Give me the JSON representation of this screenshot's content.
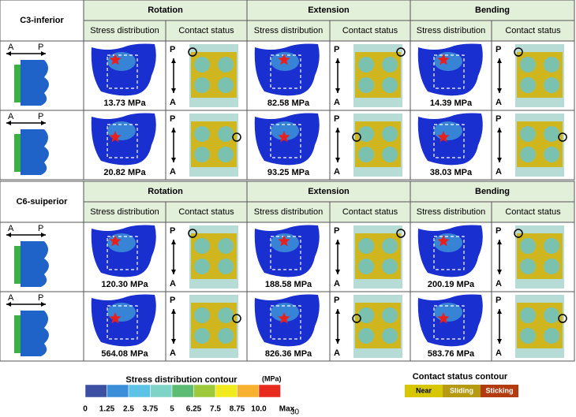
{
  "blocks": [
    {
      "label": "C3-inferior",
      "loads": [
        "Rotation",
        "Extension",
        "Bending"
      ],
      "columns": [
        "Stress distribution",
        "Contact status"
      ],
      "axis": {
        "a": "A",
        "p": "P"
      },
      "rows": [
        [
          "13.73 MPa",
          "82.58 MPa",
          "14.39 MPa"
        ],
        [
          "20.82 MPa",
          "93.25 MPa",
          "38.03 MPa"
        ]
      ]
    },
    {
      "label": "C6-suiperior",
      "loads": [
        "Rotation",
        "Extension",
        "Bending"
      ],
      "columns": [
        "Stress distribution",
        "Contact status"
      ],
      "axis": {
        "a": "A",
        "p": "P"
      },
      "rows": [
        [
          "120.30 MPa",
          "188.58 MPa",
          "200.19 MPa"
        ],
        [
          "564.08 MPa",
          "826.36 MPa",
          "583.76 MPa"
        ]
      ]
    }
  ],
  "stress_legend": {
    "title": "Stress distribution contour",
    "unit": "(MPa)",
    "labels": [
      "0",
      "1.25",
      "2.5",
      "3.75",
      "5",
      "6.25",
      "7.5",
      "8.75",
      "10.0",
      "Max"
    ]
  },
  "contact_legend": {
    "title": "Contact status contour",
    "labels": [
      "Near",
      "Sliding",
      "Sticking"
    ]
  },
  "page_number": "30"
}
